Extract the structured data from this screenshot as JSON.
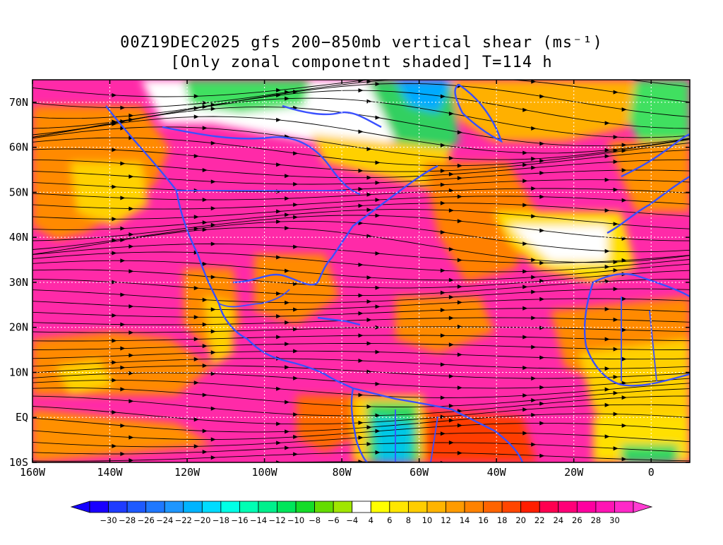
{
  "title": {
    "line1": "00Z19DEC2025 gfs 200−850mb vertical shear (ms⁻¹)",
    "line2": "[Only zonal componetnt shaded] T=114 h"
  },
  "axes": {
    "lon_labels": [
      "160W",
      "140W",
      "120W",
      "100W",
      "80W",
      "60W",
      "40W",
      "20W",
      "0"
    ],
    "lat_labels": [
      "70N",
      "60N",
      "50N",
      "40N",
      "30N",
      "20N",
      "10N",
      "EQ",
      "10S"
    ]
  },
  "map_extent": {
    "lon_min": -160,
    "lon_max": 10,
    "lat_min": -10,
    "lat_max": 75
  },
  "colorbar": {
    "labels": [
      "−30",
      "−28",
      "−26",
      "−24",
      "−22",
      "−20",
      "−18",
      "−16",
      "−14",
      "−12",
      "−10",
      "−8",
      "−6",
      "−4",
      "4",
      "6",
      "8",
      "10",
      "12",
      "14",
      "16",
      "18",
      "20",
      "22",
      "24",
      "26",
      "28",
      "30"
    ],
    "colors": [
      "#1a00ff",
      "#1f3cff",
      "#1e5aff",
      "#1f78ff",
      "#1e96ff",
      "#00b4ff",
      "#00dcff",
      "#00ffe6",
      "#00ffb4",
      "#00f08c",
      "#00e65a",
      "#14dc28",
      "#64dc00",
      "#a0e600",
      "#ffffff",
      "#ffff00",
      "#ffe600",
      "#ffcd00",
      "#ffb400",
      "#ff9b00",
      "#ff8200",
      "#ff6400",
      "#ff4600",
      "#ff1e00",
      "#ff0050",
      "#ff0078",
      "#ff00a0",
      "#ff14b4",
      "#ff28c8"
    ]
  }
}
